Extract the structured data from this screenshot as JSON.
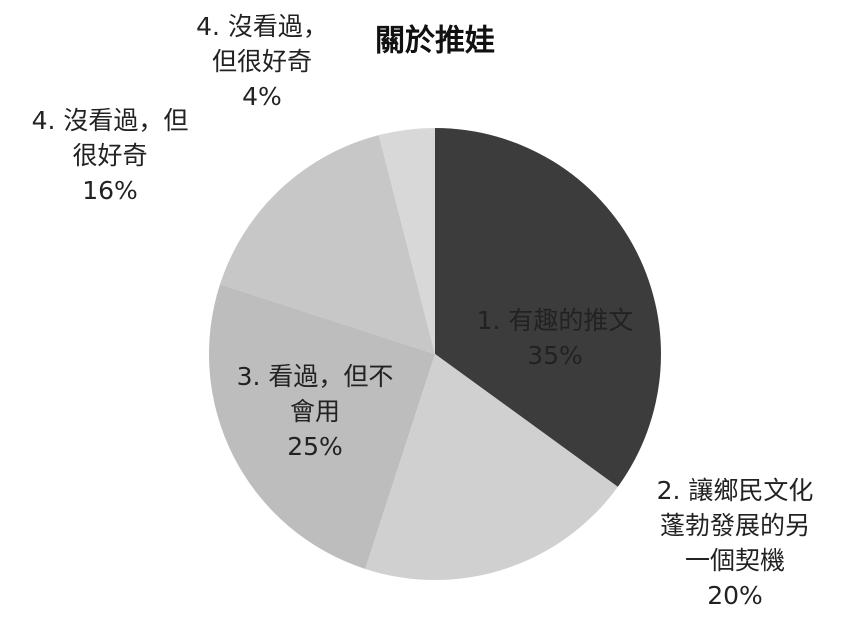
{
  "chart_data": {
    "type": "pie",
    "title": "關於推娃",
    "categories": [
      [
        "1. 有趣的推文"
      ],
      [
        "2. 讓鄉民文化",
        "蓬勃發展的另",
        "一個契機"
      ],
      [
        "3. 看過，但不",
        "會用"
      ],
      [
        "4. 沒看過，但",
        "很好奇"
      ],
      [
        "4. 沒看過，",
        "但很好奇"
      ]
    ],
    "values": [
      35,
      20,
      25,
      16,
      4
    ],
    "value_labels": [
      "35%",
      "20%",
      "25%",
      "16%",
      "4%"
    ],
    "colors": [
      "#3c3c3c",
      "#d0d0d0",
      "#bdbdbd",
      "#c7c7c7",
      "#d8d8d8"
    ]
  }
}
